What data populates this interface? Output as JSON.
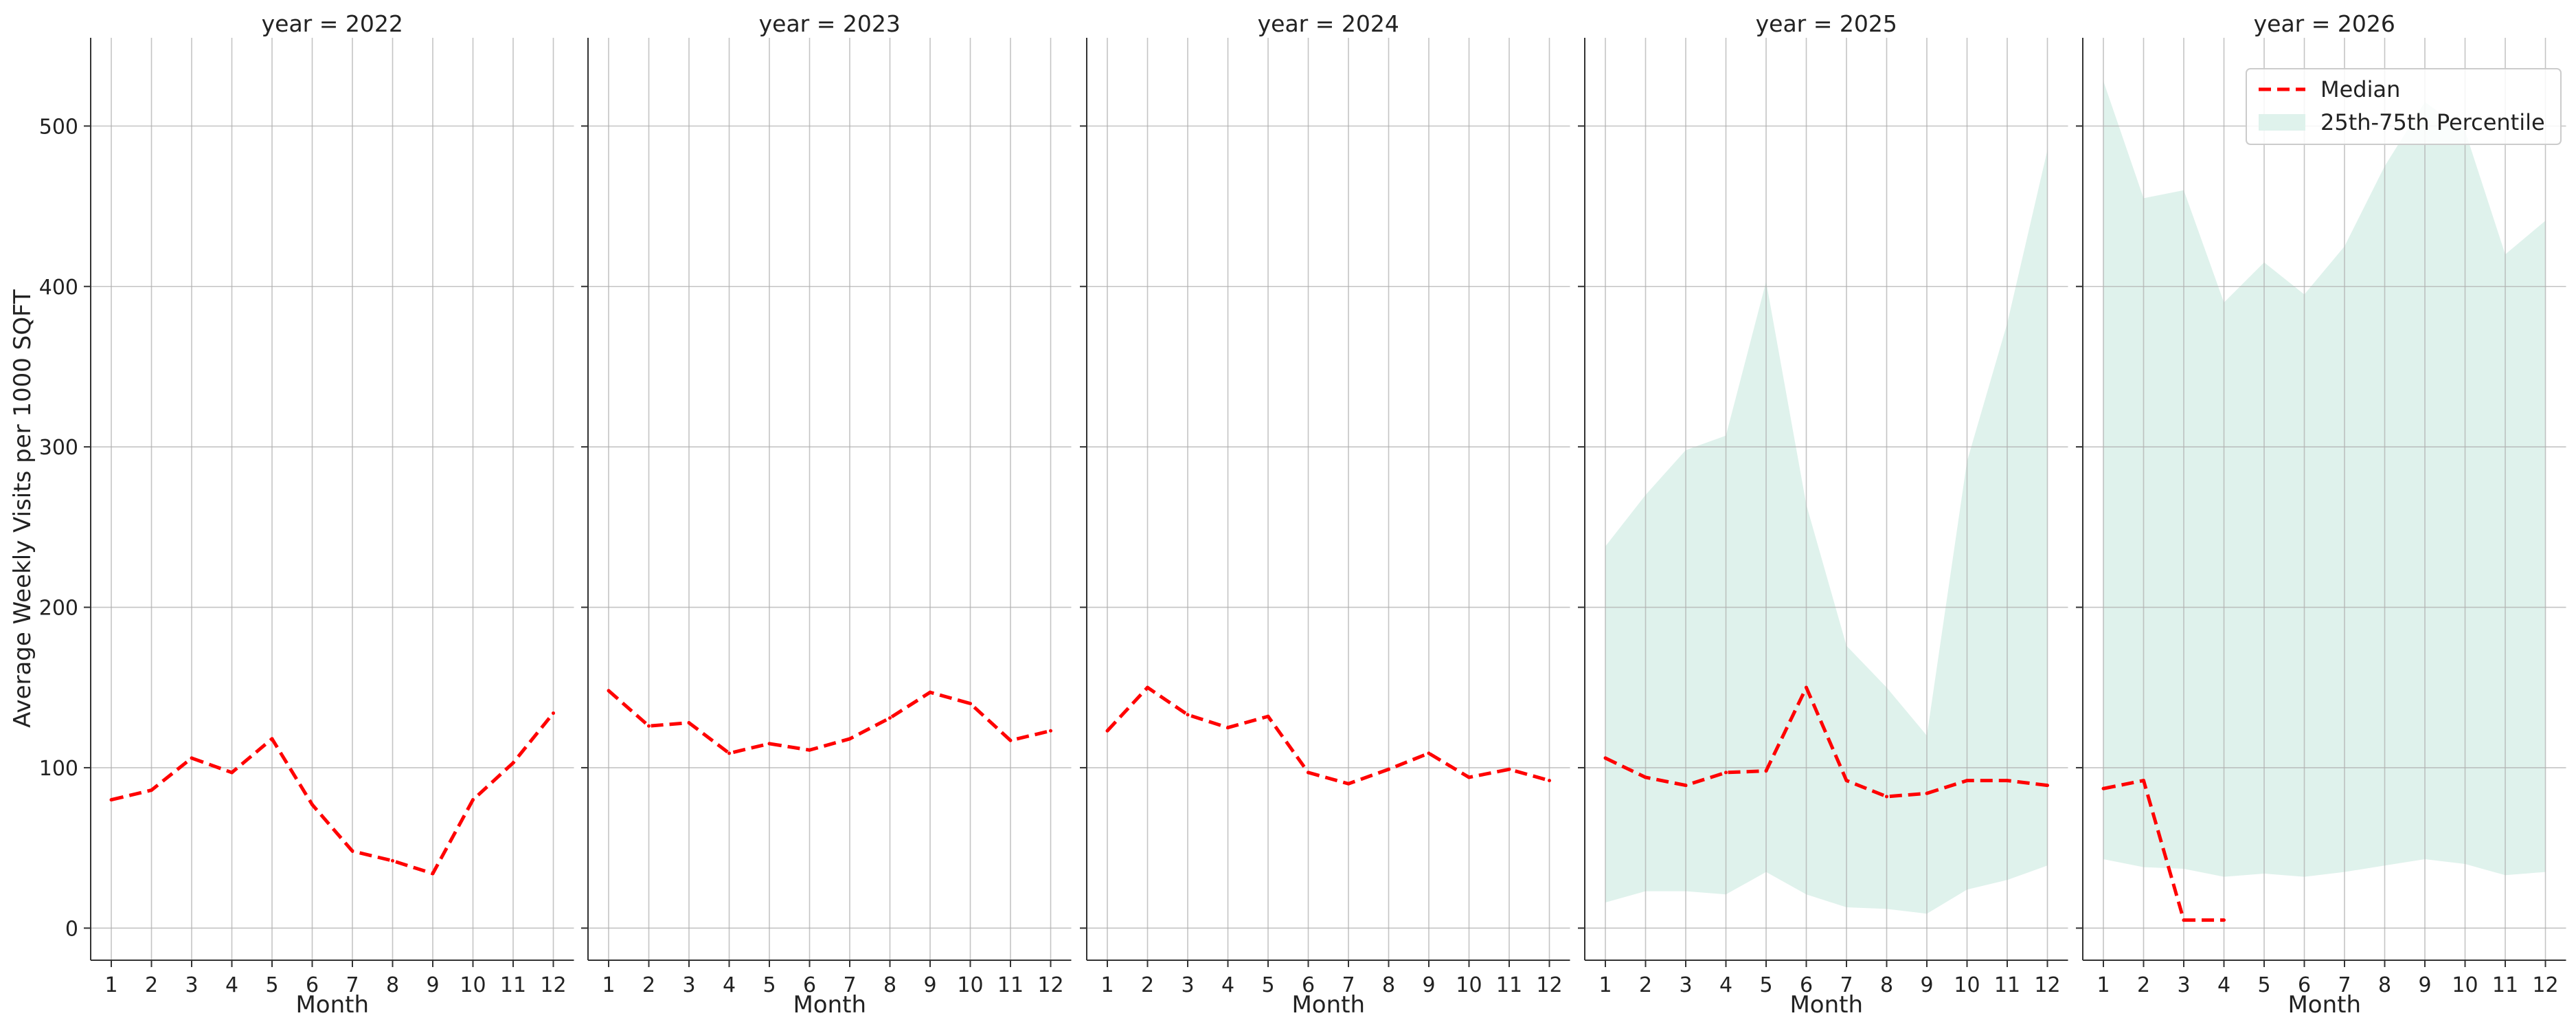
{
  "ylabel": "Average Weekly Visits per 1000 SQFT",
  "xlabel": "Month",
  "legend": {
    "median": "Median",
    "iqr": "25th-75th Percentile",
    "placement": "top-right"
  },
  "colors": {
    "median": "#ff0000",
    "band": "#dff2ec",
    "grid": "#b0b0b0",
    "axis": "#333333"
  },
  "chart_data": [
    {
      "type": "line",
      "title": "year = 2022",
      "x": [
        1,
        2,
        3,
        4,
        5,
        6,
        7,
        8,
        9,
        10,
        11,
        12
      ],
      "ylim": [
        -20,
        555
      ],
      "yticks": [
        0,
        100,
        200,
        300,
        400,
        500
      ],
      "grid": true,
      "series": [
        {
          "name": "Median",
          "values": [
            80,
            86,
            106,
            97,
            118,
            77,
            48,
            42,
            34,
            80,
            103,
            134
          ]
        }
      ]
    },
    {
      "type": "line",
      "title": "year = 2023",
      "x": [
        1,
        2,
        3,
        4,
        5,
        6,
        7,
        8,
        9,
        10,
        11,
        12
      ],
      "ylim": [
        -20,
        555
      ],
      "yticks": [
        0,
        100,
        200,
        300,
        400,
        500
      ],
      "grid": true,
      "series": [
        {
          "name": "Median",
          "values": [
            148,
            126,
            128,
            109,
            115,
            111,
            118,
            131,
            147,
            140,
            117,
            123
          ]
        }
      ]
    },
    {
      "type": "line",
      "title": "year = 2024",
      "x": [
        1,
        2,
        3,
        4,
        5,
        6,
        7,
        8,
        9,
        10,
        11,
        12
      ],
      "ylim": [
        -20,
        555
      ],
      "yticks": [
        0,
        100,
        200,
        300,
        400,
        500
      ],
      "grid": true,
      "series": [
        {
          "name": "Median",
          "values": [
            123,
            150,
            133,
            125,
            132,
            97,
            90,
            99,
            109,
            94,
            99,
            92
          ]
        }
      ]
    },
    {
      "type": "line",
      "title": "year = 2025",
      "x": [
        1,
        2,
        3,
        4,
        5,
        6,
        7,
        8,
        9,
        10,
        11,
        12
      ],
      "ylim": [
        -20,
        555
      ],
      "yticks": [
        0,
        100,
        200,
        300,
        400,
        500
      ],
      "grid": true,
      "series": [
        {
          "name": "Median",
          "values": [
            106,
            94,
            89,
            97,
            98,
            150,
            92,
            82,
            84,
            92,
            92,
            89
          ]
        }
      ],
      "band": {
        "name": "25th-75th Percentile",
        "low": [
          16,
          23,
          23,
          21,
          35,
          21,
          13,
          12,
          9,
          24,
          30,
          39
        ],
        "high": [
          238,
          270,
          298,
          307,
          403,
          264,
          176,
          150,
          120,
          291,
          377,
          485
        ]
      }
    },
    {
      "type": "line",
      "title": "year = 2026",
      "x": [
        1,
        2,
        3,
        4,
        5,
        6,
        7,
        8,
        9,
        10,
        11,
        12
      ],
      "ylim": [
        -20,
        555
      ],
      "yticks": [
        0,
        100,
        200,
        300,
        400,
        500
      ],
      "grid": true,
      "series": [
        {
          "name": "Median",
          "x": [
            1,
            2,
            3,
            4
          ],
          "values": [
            87,
            92,
            5,
            5
          ]
        }
      ],
      "band": {
        "name": "25th-75th Percentile",
        "low": [
          43,
          38,
          37,
          32,
          34,
          32,
          35,
          39,
          43,
          40,
          33,
          35
        ],
        "high": [
          528,
          455,
          460,
          390,
          415,
          395,
          425,
          475,
          515,
          497,
          420,
          441
        ]
      }
    }
  ]
}
